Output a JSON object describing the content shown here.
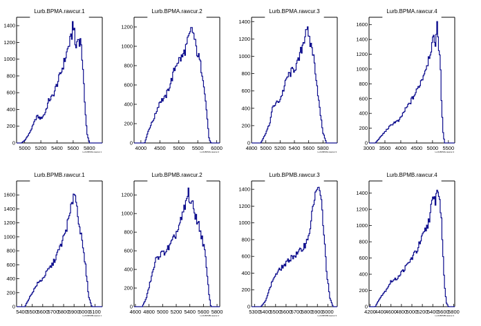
{
  "chart_data": [
    {
      "type": "histogram",
      "title": "Lurb.BPMA.rawcur.1",
      "xlabel": "Lurb.BPMA.rawcur.1",
      "xlim": [
        4900,
        5960
      ],
      "ylim": [
        0,
        1500
      ],
      "xticks": [
        5000,
        5200,
        5400,
        5600,
        5800
      ],
      "xtick_labels": [
        "5000",
        "5200",
        "5400",
        "5600",
        "5800"
      ],
      "yticks": [
        0,
        200,
        400,
        600,
        800,
        1000,
        1200,
        1400
      ],
      "profile": [
        [
          4960,
          0
        ],
        [
          5000,
          30
        ],
        [
          5050,
          100
        ],
        [
          5100,
          200
        ],
        [
          5150,
          320
        ],
        [
          5200,
          290
        ],
        [
          5250,
          350
        ],
        [
          5300,
          510
        ],
        [
          5350,
          560
        ],
        [
          5400,
          700
        ],
        [
          5450,
          840
        ],
        [
          5500,
          1000
        ],
        [
          5550,
          1180
        ],
        [
          5580,
          1250
        ],
        [
          5600,
          1480
        ],
        [
          5630,
          1120
        ],
        [
          5660,
          1250
        ],
        [
          5700,
          1200
        ],
        [
          5740,
          540
        ],
        [
          5770,
          120
        ],
        [
          5800,
          0
        ]
      ]
    },
    {
      "type": "histogram",
      "title": "Lurb.BPMA.rawcur.2",
      "xlabel": "Lurb.BPMA.rawcur.2",
      "xlim": [
        3820,
        6080
      ],
      "ylim": [
        0,
        1300
      ],
      "xticks": [
        4000,
        4500,
        5000,
        5500,
        6000
      ],
      "xtick_labels": [
        "4000",
        "4500",
        "5000",
        "5500",
        "6000"
      ],
      "yticks": [
        0,
        200,
        400,
        600,
        800,
        1000,
        1200
      ],
      "profile": [
        [
          4100,
          0
        ],
        [
          4200,
          130
        ],
        [
          4350,
          260
        ],
        [
          4500,
          430
        ],
        [
          4650,
          470
        ],
        [
          4800,
          640
        ],
        [
          4950,
          840
        ],
        [
          5100,
          890
        ],
        [
          5200,
          1000
        ],
        [
          5300,
          1120
        ],
        [
          5350,
          1190
        ],
        [
          5400,
          1100
        ],
        [
          5450,
          990
        ],
        [
          5550,
          850
        ],
        [
          5650,
          660
        ],
        [
          5750,
          260
        ],
        [
          5800,
          40
        ],
        [
          5850,
          0
        ]
      ]
    },
    {
      "type": "histogram",
      "title": "Lurb.BPMA.rawcur.3",
      "xlabel": "Lurb.BPMA.rawcur.3",
      "xlim": [
        4800,
        6000
      ],
      "ylim": [
        0,
        1450
      ],
      "xticks": [
        4800,
        5000,
        5200,
        5400,
        5600,
        5800
      ],
      "xtick_labels": [
        "4800",
        "5000",
        "5200",
        "5400",
        "5600",
        "5800"
      ],
      "yticks": [
        0,
        200,
        400,
        600,
        800,
        1000,
        1200,
        1400
      ],
      "profile": [
        [
          4930,
          0
        ],
        [
          4980,
          80
        ],
        [
          5050,
          210
        ],
        [
          5100,
          420
        ],
        [
          5200,
          500
        ],
        [
          5250,
          620
        ],
        [
          5300,
          760
        ],
        [
          5400,
          860
        ],
        [
          5450,
          920
        ],
        [
          5500,
          1080
        ],
        [
          5550,
          1250
        ],
        [
          5570,
          1380
        ],
        [
          5600,
          1180
        ],
        [
          5650,
          1100
        ],
        [
          5700,
          800
        ],
        [
          5750,
          420
        ],
        [
          5800,
          120
        ],
        [
          5850,
          0
        ]
      ]
    },
    {
      "type": "histogram",
      "title": "Lurb.BPMA.rawcur.4",
      "xlabel": "Lurb.BPMA.rawcur.4",
      "xlim": [
        3000,
        5700
      ],
      "ylim": [
        0,
        1700
      ],
      "xticks": [
        3000,
        3500,
        4000,
        4500,
        5000,
        5500
      ],
      "xtick_labels": [
        "3000",
        "3500",
        "4000",
        "4500",
        "5000",
        "5500"
      ],
      "yticks": [
        0,
        200,
        400,
        600,
        800,
        1000,
        1200,
        1400,
        1600
      ],
      "profile": [
        [
          3200,
          0
        ],
        [
          3400,
          100
        ],
        [
          3600,
          200
        ],
        [
          3800,
          280
        ],
        [
          3950,
          300
        ],
        [
          4100,
          420
        ],
        [
          4300,
          550
        ],
        [
          4500,
          700
        ],
        [
          4700,
          900
        ],
        [
          4850,
          1100
        ],
        [
          4950,
          1280
        ],
        [
          5050,
          1400
        ],
        [
          5100,
          1380
        ],
        [
          5150,
          1580
        ],
        [
          5200,
          1300
        ],
        [
          5250,
          1100
        ],
        [
          5280,
          600
        ],
        [
          5330,
          150
        ],
        [
          5380,
          0
        ]
      ]
    },
    {
      "type": "histogram",
      "title": "Lurb.BPMB.rawcur.1",
      "xlabel": "Lurb.BPMB.rawcur.1",
      "xlim": [
        5350,
        6170
      ],
      "ylim": [
        0,
        1800
      ],
      "xticks": [
        5400,
        5500,
        5600,
        5700,
        5800,
        5900,
        6000,
        6100
      ],
      "xtick_labels": [
        "5400",
        "5500",
        "5600",
        "5700",
        "5800",
        "5900",
        "6000",
        "6100"
      ],
      "yticks": [
        0,
        200,
        400,
        600,
        800,
        1000,
        1200,
        1400,
        1600
      ],
      "profile": [
        [
          5430,
          0
        ],
        [
          5460,
          90
        ],
        [
          5500,
          200
        ],
        [
          5550,
          330
        ],
        [
          5600,
          400
        ],
        [
          5650,
          520
        ],
        [
          5700,
          620
        ],
        [
          5750,
          790
        ],
        [
          5800,
          980
        ],
        [
          5850,
          1250
        ],
        [
          5880,
          1450
        ],
        [
          5900,
          1700
        ],
        [
          5920,
          1500
        ],
        [
          5950,
          1200
        ],
        [
          5980,
          880
        ],
        [
          6010,
          580
        ],
        [
          6040,
          150
        ],
        [
          6070,
          0
        ]
      ]
    },
    {
      "type": "histogram",
      "title": "Lurb.BPMB.rawcur.2",
      "xlabel": "Lurb.BPMB.rawcur.2",
      "xlim": [
        4580,
        5840
      ],
      "ylim": [
        0,
        1350
      ],
      "xticks": [
        4600,
        4800,
        5000,
        5200,
        5400,
        5600,
        5800
      ],
      "xtick_labels": [
        "4600",
        "4800",
        "5000",
        "5200",
        "5400",
        "5600",
        "5800"
      ],
      "yticks": [
        0,
        200,
        400,
        600,
        800,
        1000,
        1200
      ],
      "profile": [
        [
          4700,
          0
        ],
        [
          4760,
          90
        ],
        [
          4830,
          300
        ],
        [
          4900,
          500
        ],
        [
          4960,
          560
        ],
        [
          5020,
          580
        ],
        [
          5100,
          640
        ],
        [
          5160,
          720
        ],
        [
          5220,
          820
        ],
        [
          5280,
          940
        ],
        [
          5340,
          1100
        ],
        [
          5380,
          1230
        ],
        [
          5400,
          1150
        ],
        [
          5440,
          1080
        ],
        [
          5500,
          950
        ],
        [
          5560,
          800
        ],
        [
          5620,
          600
        ],
        [
          5680,
          150
        ],
        [
          5710,
          0
        ]
      ]
    },
    {
      "type": "histogram",
      "title": "Lurb.BPMB.rawcur.3",
      "xlabel": "Lurb.BPMB.rawcur.3",
      "xlim": [
        5270,
        6090
      ],
      "ylim": [
        0,
        1500
      ],
      "xticks": [
        5300,
        5400,
        5500,
        5600,
        5700,
        5800,
        5900,
        6000
      ],
      "xtick_labels": [
        "5300",
        "5400",
        "5500",
        "5600",
        "5700",
        "5800",
        "5900",
        "6000"
      ],
      "yticks": [
        0,
        200,
        400,
        600,
        800,
        1000,
        1200,
        1400
      ],
      "profile": [
        [
          5360,
          0
        ],
        [
          5400,
          60
        ],
        [
          5440,
          200
        ],
        [
          5480,
          340
        ],
        [
          5520,
          410
        ],
        [
          5560,
          470
        ],
        [
          5600,
          510
        ],
        [
          5650,
          590
        ],
        [
          5700,
          620
        ],
        [
          5750,
          680
        ],
        [
          5800,
          780
        ],
        [
          5840,
          1000
        ],
        [
          5870,
          1300
        ],
        [
          5890,
          1400
        ],
        [
          5920,
          1360
        ],
        [
          5940,
          1250
        ],
        [
          5960,
          900
        ],
        [
          5990,
          400
        ],
        [
          6020,
          100
        ],
        [
          6050,
          0
        ]
      ]
    },
    {
      "type": "histogram",
      "title": "Lurb.BPMB.rawcur.4",
      "xlabel": "Lurb.BPMB.rawcur.4",
      "xlim": [
        4180,
        5820
      ],
      "ylim": [
        0,
        1550
      ],
      "xticks": [
        4200,
        4400,
        4600,
        4800,
        5000,
        5200,
        5400,
        5600,
        5800
      ],
      "xtick_labels": [
        "4200",
        "4400",
        "4600",
        "4800",
        "5000",
        "5200",
        "5400",
        "5600",
        "5800"
      ],
      "yticks": [
        0,
        200,
        400,
        600,
        800,
        1000,
        1200,
        1400
      ],
      "profile": [
        [
          4300,
          0
        ],
        [
          4400,
          120
        ],
        [
          4500,
          200
        ],
        [
          4600,
          310
        ],
        [
          4700,
          340
        ],
        [
          4800,
          420
        ],
        [
          4900,
          500
        ],
        [
          5000,
          600
        ],
        [
          5100,
          700
        ],
        [
          5200,
          850
        ],
        [
          5300,
          1000
        ],
        [
          5350,
          1150
        ],
        [
          5400,
          1300
        ],
        [
          5450,
          1320
        ],
        [
          5500,
          1460
        ],
        [
          5540,
          1280
        ],
        [
          5580,
          900
        ],
        [
          5620,
          300
        ],
        [
          5660,
          50
        ],
        [
          5700,
          0
        ]
      ]
    }
  ]
}
